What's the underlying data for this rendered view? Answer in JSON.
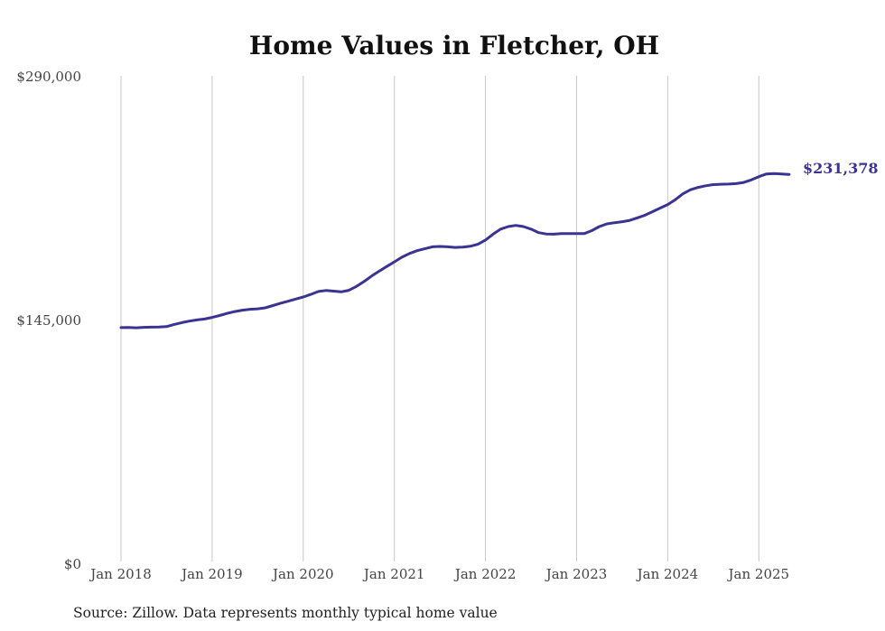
{
  "chart_data": {
    "type": "line",
    "title": "Home Values in Fletcher, OH",
    "source_note": "Source: Zillow. Data represents monthly typical home value",
    "ylim": [
      0,
      290000
    ],
    "y_ticks": [
      {
        "value": 0,
        "label": "$0"
      },
      {
        "value": 145000,
        "label": "$145,000"
      },
      {
        "value": 290000,
        "label": "$290,000"
      }
    ],
    "x_ticks": [
      {
        "value": "2018-01",
        "label": "Jan 2018"
      },
      {
        "value": "2019-01",
        "label": "Jan 2019"
      },
      {
        "value": "2020-01",
        "label": "Jan 2020"
      },
      {
        "value": "2021-01",
        "label": "Jan 2021"
      },
      {
        "value": "2022-01",
        "label": "Jan 2022"
      },
      {
        "value": "2023-01",
        "label": "Jan 2023"
      },
      {
        "value": "2024-01",
        "label": "Jan 2024"
      },
      {
        "value": "2025-01",
        "label": "Jan 2025"
      }
    ],
    "grid": "vertical",
    "line_color": "#3b3391",
    "end_label": "$231,378",
    "series": [
      {
        "x": [
          "2018-01",
          "2018-02",
          "2018-03",
          "2018-04",
          "2018-05",
          "2018-06",
          "2018-07",
          "2018-08",
          "2018-09",
          "2018-10",
          "2018-11",
          "2018-12",
          "2019-01",
          "2019-02",
          "2019-03",
          "2019-04",
          "2019-05",
          "2019-06",
          "2019-07",
          "2019-08",
          "2019-09",
          "2019-10",
          "2019-11",
          "2019-12",
          "2020-01",
          "2020-02",
          "2020-03",
          "2020-04",
          "2020-05",
          "2020-06",
          "2020-07",
          "2020-08",
          "2020-09",
          "2020-10",
          "2020-11",
          "2020-12",
          "2021-01",
          "2021-02",
          "2021-03",
          "2021-04",
          "2021-05",
          "2021-06",
          "2021-07",
          "2021-08",
          "2021-09",
          "2021-10",
          "2021-11",
          "2021-12",
          "2022-01",
          "2022-02",
          "2022-03",
          "2022-04",
          "2022-05",
          "2022-06",
          "2022-07",
          "2022-08",
          "2022-09",
          "2022-10",
          "2022-11",
          "2022-12",
          "2023-01",
          "2023-02",
          "2023-03",
          "2023-04",
          "2023-05",
          "2023-06",
          "2023-07",
          "2023-08",
          "2023-09",
          "2023-10",
          "2023-11",
          "2023-12",
          "2024-01",
          "2024-02",
          "2024-03",
          "2024-04",
          "2024-05",
          "2024-06",
          "2024-07",
          "2024-08",
          "2024-09",
          "2024-10",
          "2024-11",
          "2024-12",
          "2025-01",
          "2025-02",
          "2025-03",
          "2025-04",
          "2025-05"
        ],
        "values": [
          140200,
          140300,
          140100,
          140400,
          140500,
          140600,
          140800,
          142100,
          143200,
          144100,
          144800,
          145300,
          146300,
          147400,
          148700,
          149800,
          150600,
          151100,
          151400,
          152000,
          153300,
          154700,
          155900,
          157200,
          158400,
          160000,
          161700,
          162300,
          161900,
          161500,
          162400,
          164700,
          167600,
          170900,
          173800,
          176600,
          179300,
          182100,
          184300,
          186000,
          187100,
          188300,
          188500,
          188300,
          187900,
          188100,
          188600,
          189800,
          192300,
          195800,
          198800,
          200300,
          201000,
          200300,
          198800,
          196700,
          195900,
          195800,
          196100,
          196100,
          196200,
          196100,
          197900,
          200300,
          201900,
          202600,
          203200,
          204000,
          205500,
          207100,
          209200,
          211300,
          213400,
          216300,
          219800,
          222200,
          223600,
          224600,
          225300,
          225500,
          225600,
          225900,
          226600,
          228100,
          230000,
          231600,
          231900,
          231600,
          231378
        ]
      }
    ]
  }
}
